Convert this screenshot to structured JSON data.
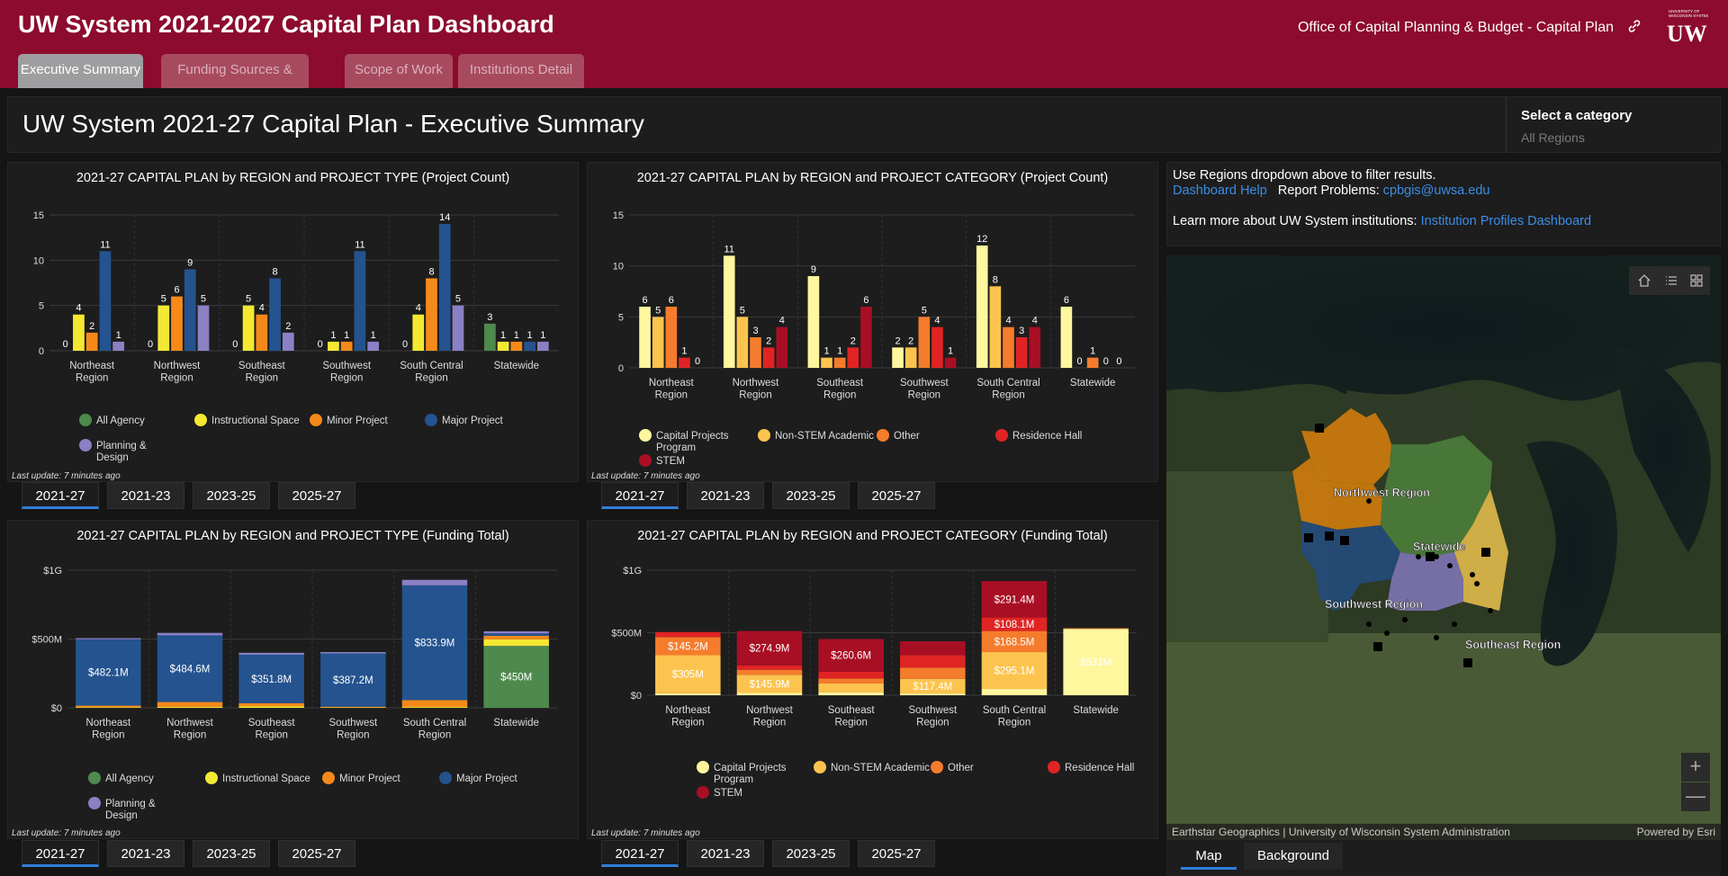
{
  "header": {
    "title": "UW System 2021-2027 Capital Plan Dashboard",
    "office": "Office of Capital Planning & Budget - Capital Plan",
    "logo_text": "UNIVERSITY OF WISCONSIN SYSTEM UW"
  },
  "tabs": [
    "Executive Summary",
    "Funding Sources & Trends",
    "Scope of Work",
    "Institutions Detail"
  ],
  "page_title": "UW System 2021-27 Capital Plan - Executive Summary",
  "category_select": {
    "label": "Select a category",
    "value": "All Regions"
  },
  "panel_tabs": [
    "2021-27",
    "2021-23",
    "2023-25",
    "2025-27"
  ],
  "last_update": "Last update: 7 minutes ago",
  "info": {
    "line1": "Use Regions dropdown above to filter results.",
    "help": "Dashboard Help",
    "report": "Report Problems:",
    "email": "cpbgis@uwsa.edu",
    "learn": "Learn more about UW System institutions:",
    "profiles": "Institution Profiles Dashboard"
  },
  "map": {
    "labels": [
      "Northwest Region",
      "Statewide",
      "Southwest Region",
      "Southeast Region"
    ],
    "attribution": "Earthstar Geographics | University of Wisconsin System Administration",
    "powered": "Powered by Esri",
    "tabs": [
      "Map",
      "Background"
    ],
    "zoom_in": "+",
    "zoom_out": "—"
  },
  "colors": {
    "all_agency": "#4e8a4e",
    "instructional": "#f5e832",
    "minor": "#f58a1a",
    "major": "#24538f",
    "planning": "#8a80c4",
    "cpp": "#fff79e",
    "nonstem": "#fcc44e",
    "other": "#f57c2c",
    "residence": "#e02424",
    "stem": "#a80f24"
  },
  "chart_data": [
    {
      "type": "bar",
      "title": "2021-27 CAPITAL PLAN by REGION and PROJECT TYPE (Project Count)",
      "categories": [
        "Northeast Region",
        "Northwest Region",
        "Southeast Region",
        "Southwest Region",
        "South Central Region",
        "Statewide"
      ],
      "ylim": [
        0,
        15
      ],
      "yticks": [
        "0",
        "5",
        "10",
        "15"
      ],
      "series": [
        {
          "name": "All Agency",
          "values": [
            0,
            0,
            0,
            0,
            0,
            3
          ]
        },
        {
          "name": "Instructional Space",
          "values": [
            4,
            5,
            5,
            1,
            4,
            1
          ]
        },
        {
          "name": "Minor Project",
          "values": [
            2,
            6,
            4,
            1,
            8,
            1
          ]
        },
        {
          "name": "Major Project",
          "values": [
            11,
            9,
            8,
            11,
            14,
            1
          ]
        },
        {
          "name": "Planning & Design",
          "values": [
            1,
            5,
            2,
            1,
            5,
            1
          ]
        }
      ]
    },
    {
      "type": "bar",
      "title": "2021-27 CAPITAL PLAN by REGION and PROJECT CATEGORY (Project Count)",
      "categories": [
        "Northeast Region",
        "Northwest Region",
        "Southeast Region",
        "Southwest Region",
        "South Central Region",
        "Statewide"
      ],
      "ylim": [
        0,
        15
      ],
      "yticks": [
        "0",
        "5",
        "10",
        "15"
      ],
      "series": [
        {
          "name": "Capital Projects Program",
          "values": [
            6,
            11,
            9,
            2,
            12,
            6
          ]
        },
        {
          "name": "Non-STEM Academic",
          "values": [
            5,
            5,
            1,
            2,
            8,
            0
          ]
        },
        {
          "name": "Other",
          "values": [
            6,
            3,
            1,
            5,
            4,
            1
          ]
        },
        {
          "name": "Residence Hall",
          "values": [
            1,
            2,
            2,
            4,
            3,
            0
          ]
        },
        {
          "name": "STEM",
          "values": [
            0,
            4,
            6,
            1,
            4,
            0
          ]
        }
      ]
    },
    {
      "type": "bar",
      "stacked": true,
      "title": "2021-27 CAPITAL PLAN by REGION and PROJECT TYPE (Funding Total)",
      "categories": [
        "Northeast Region",
        "Northwest Region",
        "Southeast Region",
        "Southwest Region",
        "South Central Region",
        "Statewide"
      ],
      "ylim": [
        0,
        1000
      ],
      "yticks": [
        "$0",
        "$500M",
        "$1G"
      ],
      "unit": "$M",
      "series": [
        {
          "name": "All Agency",
          "values": [
            0,
            0,
            0,
            0,
            0,
            450
          ]
        },
        {
          "name": "Instructional Space",
          "values": [
            4,
            8,
            12,
            3,
            6,
            48
          ]
        },
        {
          "name": "Minor Project",
          "values": [
            12,
            34,
            22,
            5,
            50,
            25
          ]
        },
        {
          "name": "Major Project",
          "values": [
            482.1,
            484.6,
            351.8,
            387.2,
            833.9,
            18
          ]
        },
        {
          "name": "Planning & Design",
          "values": [
            8,
            18,
            14,
            10,
            40,
            15
          ]
        }
      ],
      "labels": [
        "$482.1M",
        "$484.6M",
        "$351.8M",
        "$387.2M",
        "$833.9M",
        "$450M"
      ]
    },
    {
      "type": "bar",
      "stacked": true,
      "title": "2021-27 CAPITAL PLAN by REGION and PROJECT CATEGORY (Funding Total)",
      "categories": [
        "Northeast Region",
        "Northwest Region",
        "Southeast Region",
        "Southwest Region",
        "South Central Region",
        "Statewide"
      ],
      "ylim": [
        0,
        1000
      ],
      "yticks": [
        "$0",
        "$500M",
        "$1G"
      ],
      "unit": "$M",
      "series": [
        {
          "name": "Capital Projects Program",
          "values": [
            15,
            18,
            24,
            14,
            50,
            531
          ],
          "labels": [
            "",
            "",
            "",
            "",
            "",
            "$531M"
          ]
        },
        {
          "name": "Non-STEM Academic",
          "values": [
            305,
            145.9,
            70,
            117.4,
            295.1,
            0
          ],
          "labels": [
            "$305M",
            "$145.9M",
            "",
            "$117.4M",
            "$295.1M",
            ""
          ]
        },
        {
          "name": "Other",
          "values": [
            145.2,
            40,
            40,
            90,
            168.5,
            5
          ],
          "labels": [
            "$145.2M",
            "",
            "",
            "",
            "$168.5M",
            ""
          ]
        },
        {
          "name": "Residence Hall",
          "values": [
            40,
            35,
            55,
            100,
            108.1,
            0
          ],
          "labels": [
            "",
            "",
            "",
            "",
            "$108.1M",
            ""
          ]
        },
        {
          "name": "STEM",
          "values": [
            0,
            274.9,
            260.6,
            110,
            291.4,
            0
          ],
          "labels": [
            "",
            "$274.9M",
            "$260.6M",
            "",
            "$291.4M",
            ""
          ]
        }
      ]
    }
  ]
}
